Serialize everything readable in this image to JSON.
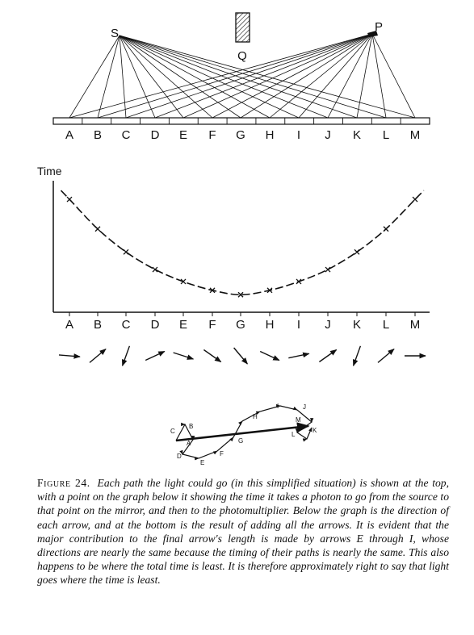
{
  "labels": {
    "source": "S",
    "detector": "P",
    "blocker": "Q",
    "y_axis": "Time",
    "mirror_points": [
      "A",
      "B",
      "C",
      "D",
      "E",
      "F",
      "G",
      "H",
      "I",
      "J",
      "K",
      "L",
      "M"
    ],
    "sum_labels": [
      "A",
      "B",
      "C",
      "D",
      "E",
      "F",
      "G",
      "H",
      "I",
      "J",
      "K",
      "L",
      "M"
    ]
  },
  "chart_data": {
    "type": "line",
    "categories": [
      "A",
      "B",
      "C",
      "D",
      "E",
      "F",
      "G",
      "H",
      "I",
      "J",
      "K",
      "L",
      "M"
    ],
    "ylabel": "Time",
    "xlabel": "",
    "series": [
      {
        "values": [
          10.3,
          7.6,
          5.5,
          3.9,
          2.8,
          2.0,
          1.6,
          2.0,
          2.8,
          3.9,
          5.5,
          7.6,
          10.3
        ]
      }
    ],
    "ylim": [
      0,
      12
    ],
    "grid": false,
    "marker": "x",
    "arrow_angles_deg": [
      -5,
      40,
      -110,
      25,
      -18,
      -35,
      -50,
      -25,
      12,
      35,
      -110,
      40,
      0
    ]
  },
  "caption": {
    "label": "Figure 24.",
    "text": "Each path the light could go (in this simplified situation) is shown at the top, with a point on the graph below it showing the time it takes a photon to go from the source to that point on the mirror, and then to the photomultiplier. Below the graph is the direction of each arrow, and at the bottom is the result of adding all the arrows. It is evident that the major contribution to the final arrow's length is made by arrows E through I, whose directions are nearly the same because the timing of their paths is nearly the same. This also happens to be where the total time is least. It is therefore approximately right to say that light goes where the time is least."
  }
}
